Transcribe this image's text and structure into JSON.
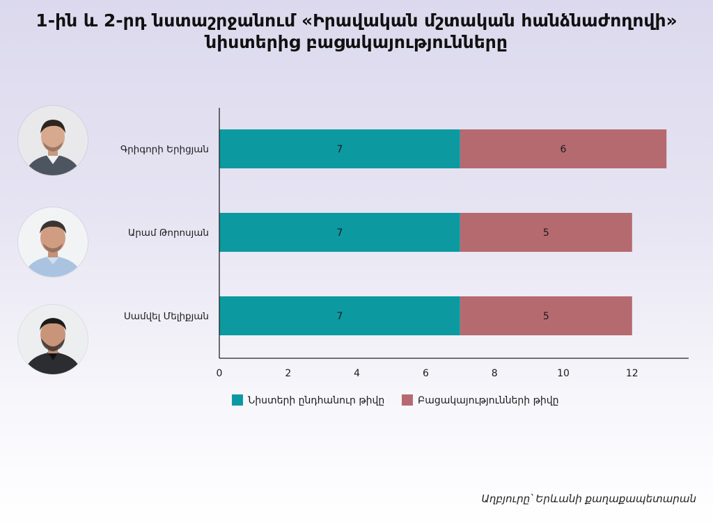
{
  "title_lines": [
    "1-ին և 2-րդ նստաշրջանում «Իրավական մշտական հանձնաժողովի»",
    "նիստերից բացակայությունները"
  ],
  "source": "Աղբյուրը՝ Երևանի քաղաքապետարան",
  "colors": {
    "attended": "#0c9aa0",
    "absences": "#b56a70",
    "axis": "#222222"
  },
  "chart_data": {
    "type": "bar",
    "orientation": "horizontal",
    "stacked": true,
    "categories": [
      "Գրիգորի Երիցյան",
      "Արամ Թորոսյան",
      "Սամվել Մելիքյան"
    ],
    "series": [
      {
        "name": "Նիստերի ընդհանուր թիվը",
        "values": [
          7,
          7,
          7
        ]
      },
      {
        "name": "Բացակայությունների թիվը",
        "values": [
          6,
          5,
          5
        ]
      }
    ],
    "xlim": [
      0,
      13.7
    ],
    "xticks": [
      0,
      2,
      4,
      6,
      8,
      10,
      12
    ],
    "data_labels": true,
    "grid": false,
    "legend_position": "bottom"
  }
}
